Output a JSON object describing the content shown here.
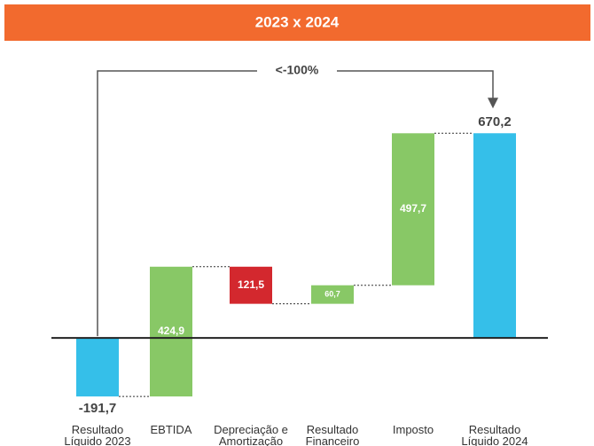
{
  "chart_data": {
    "type": "waterfall",
    "title": "2023 x 2024",
    "categories": [
      "Resultado Líquido 2023",
      "EBTIDA",
      "Depreciação e Amortização",
      "Resultado Financeiro",
      "Imposto",
      "Resultado Líquido 2024"
    ],
    "values": [
      -191.7,
      424.9,
      -121.5,
      60.7,
      497.7,
      670.2
    ],
    "value_labels": [
      "-191,7",
      "424,9",
      "121,5",
      "60,7",
      "497,7",
      "670,2"
    ],
    "measures": [
      "total",
      "relative",
      "relative",
      "relative",
      "relative",
      "total"
    ],
    "colors": [
      "#35bfe9",
      "#88c866",
      "#d3282e",
      "#88c866",
      "#88c866",
      "#35bfe9"
    ],
    "ylim": [
      -200,
      700
    ],
    "annotation": "<-100%"
  }
}
